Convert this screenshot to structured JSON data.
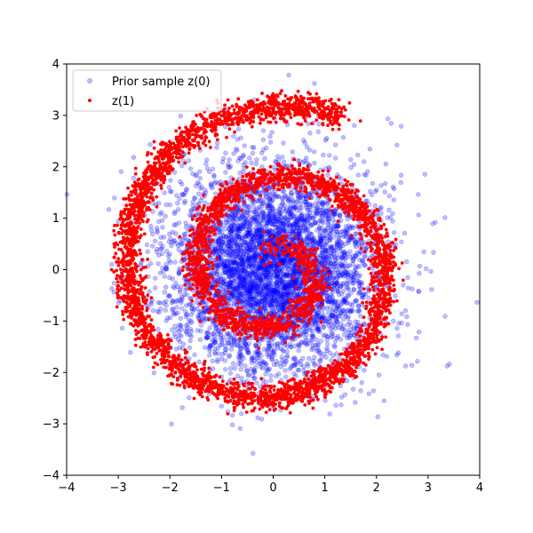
{
  "chart_data": {
    "type": "scatter",
    "title": "",
    "xlabel": "",
    "ylabel": "",
    "xlim": [
      -4,
      4
    ],
    "ylim": [
      -4,
      4
    ],
    "x_ticks": [
      -4,
      -3,
      -2,
      -1,
      0,
      1,
      2,
      3,
      4
    ],
    "y_ticks": [
      -4,
      -3,
      -2,
      -1,
      0,
      1,
      2,
      3,
      4
    ],
    "x_tick_labels": [
      "−4",
      "−3",
      "−2",
      "−1",
      "0",
      "1",
      "2",
      "3",
      "4"
    ],
    "y_tick_labels": [
      "−4",
      "−3",
      "−2",
      "−1",
      "0",
      "1",
      "2",
      "3",
      "4"
    ],
    "grid": false,
    "legend_position": "upper-left",
    "series": [
      {
        "name": "Prior sample z(0)",
        "color": "#0000ff",
        "marker": "hollow-circle",
        "opacity": 0.25,
        "distribution": "isotropic-gaussian",
        "center": [
          0,
          0
        ],
        "spread": 1.0,
        "approx_points": 5000
      },
      {
        "name": "z(1)",
        "color": "#ff0000",
        "marker": "filled-dot",
        "distribution": "spiral",
        "center": [
          0,
          0
        ],
        "inner_radius": 0.25,
        "outer_radius": 3.25,
        "turns": 2.2,
        "noise": 0.13,
        "approx_points": 5000
      }
    ]
  }
}
